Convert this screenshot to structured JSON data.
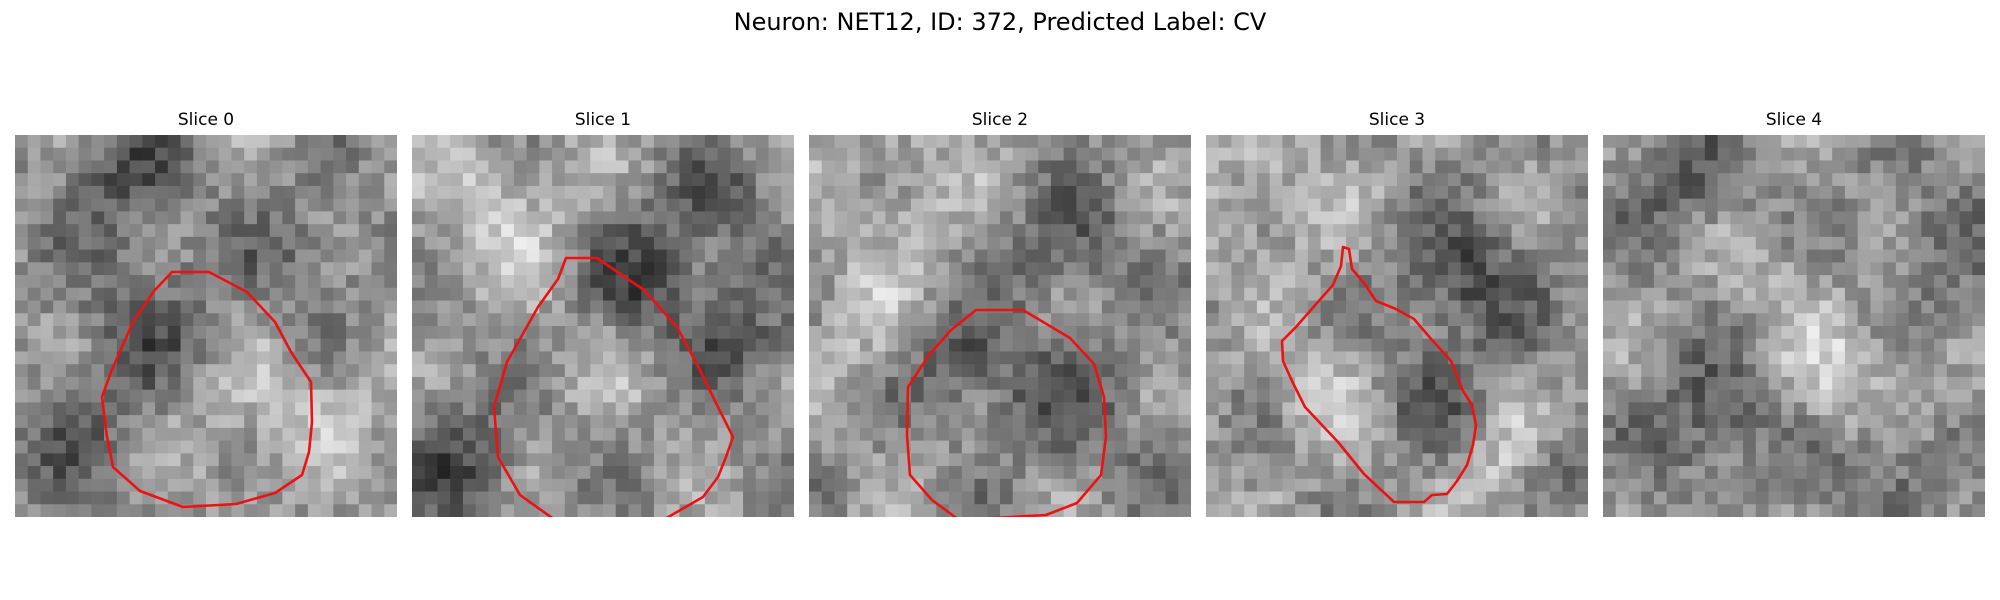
{
  "figure": {
    "title": "Neuron: NET12, ID: 372, Predicted Label: CV",
    "colors": {
      "contour": "#ee1111",
      "background": "#ffffff"
    },
    "image_style": "grayscale pixelated microscopy slice, 30x30 grid",
    "panels": [
      {
        "title": "Slice 0",
        "has_contour": true
      },
      {
        "title": "Slice 1",
        "has_contour": true
      },
      {
        "title": "Slice 2",
        "has_contour": true
      },
      {
        "title": "Slice 3",
        "has_contour": true
      },
      {
        "title": "Slice 4",
        "has_contour": false
      }
    ]
  }
}
